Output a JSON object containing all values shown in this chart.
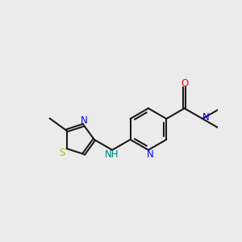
{
  "bg_color": "#ebebeb",
  "bond_color": "#1a1a1a",
  "N_color": "#0000ff",
  "O_color": "#ff0000",
  "S_color": "#b8b800",
  "NH_color": "#008080",
  "lw": 1.5,
  "dbo": 0.018,
  "fs": 8.5,
  "xlim": [
    0.3,
    3.0
  ],
  "ylim": [
    0.5,
    2.8
  ]
}
